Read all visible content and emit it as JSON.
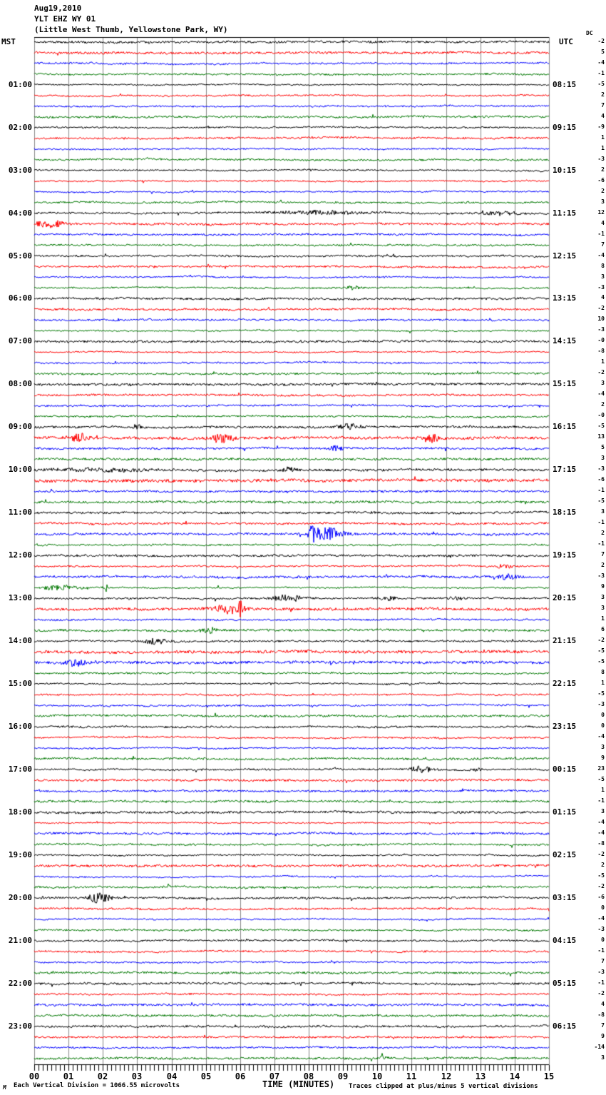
{
  "header": {
    "date": "Aug19,2010",
    "station": "YLT EHZ WY 01",
    "location": "(Little West Thumb, Yellowstone Park, WY)"
  },
  "axis_headers": {
    "left": "MST",
    "right": "UTC",
    "dc": "DC"
  },
  "x_axis": {
    "label": "TIME (MINUTES)",
    "tick_labels": [
      "00",
      "01",
      "02",
      "03",
      "04",
      "05",
      "06",
      "07",
      "08",
      "09",
      "10",
      "11",
      "12",
      "13",
      "14",
      "15"
    ]
  },
  "footer": {
    "scale_note": "Each Vertical Division = 1066.55 microvolts",
    "clip_note": "Traces clipped at plus/minus 5 vertical divisions",
    "watermark": "M"
  },
  "colors": {
    "traces": [
      "#000000",
      "#ff0000",
      "#0000ff",
      "#007700"
    ],
    "grid": "#888888",
    "border": "#000000",
    "background": "#ffffff"
  },
  "chart_data": {
    "type": "line",
    "kind": "helicorder-seismogram",
    "x_range_minutes": [
      0,
      15
    ],
    "minutes_per_row": 15,
    "row_count": 96,
    "rows": [
      {
        "mst": "",
        "utc": "",
        "dc": "-2"
      },
      {
        "mst": "",
        "utc": "",
        "dc": "5"
      },
      {
        "mst": "",
        "utc": "",
        "dc": "-4"
      },
      {
        "mst": "",
        "utc": "",
        "dc": "-1"
      },
      {
        "mst": "01:00",
        "utc": "08:15",
        "dc": "-5"
      },
      {
        "mst": "",
        "utc": "",
        "dc": "2"
      },
      {
        "mst": "",
        "utc": "",
        "dc": "7"
      },
      {
        "mst": "",
        "utc": "",
        "dc": "4"
      },
      {
        "mst": "02:00",
        "utc": "09:15",
        "dc": "-9"
      },
      {
        "mst": "",
        "utc": "",
        "dc": "1"
      },
      {
        "mst": "",
        "utc": "",
        "dc": "1"
      },
      {
        "mst": "",
        "utc": "",
        "dc": "-3"
      },
      {
        "mst": "03:00",
        "utc": "10:15",
        "dc": "2"
      },
      {
        "mst": "",
        "utc": "",
        "dc": "-6"
      },
      {
        "mst": "",
        "utc": "",
        "dc": "2"
      },
      {
        "mst": "",
        "utc": "",
        "dc": "3"
      },
      {
        "mst": "04:00",
        "utc": "11:15",
        "dc": "12"
      },
      {
        "mst": "",
        "utc": "",
        "dc": "4"
      },
      {
        "mst": "",
        "utc": "",
        "dc": "-1"
      },
      {
        "mst": "",
        "utc": "",
        "dc": "7"
      },
      {
        "mst": "05:00",
        "utc": "12:15",
        "dc": "-4"
      },
      {
        "mst": "",
        "utc": "",
        "dc": "8"
      },
      {
        "mst": "",
        "utc": "",
        "dc": "3"
      },
      {
        "mst": "",
        "utc": "",
        "dc": "-3"
      },
      {
        "mst": "06:00",
        "utc": "13:15",
        "dc": "4"
      },
      {
        "mst": "",
        "utc": "",
        "dc": "-2"
      },
      {
        "mst": "",
        "utc": "",
        "dc": "10"
      },
      {
        "mst": "",
        "utc": "",
        "dc": "-3"
      },
      {
        "mst": "07:00",
        "utc": "14:15",
        "dc": "-0"
      },
      {
        "mst": "",
        "utc": "",
        "dc": "-8"
      },
      {
        "mst": "",
        "utc": "",
        "dc": "1"
      },
      {
        "mst": "",
        "utc": "",
        "dc": "-2"
      },
      {
        "mst": "08:00",
        "utc": "15:15",
        "dc": "3"
      },
      {
        "mst": "",
        "utc": "",
        "dc": "-4"
      },
      {
        "mst": "",
        "utc": "",
        "dc": "2"
      },
      {
        "mst": "",
        "utc": "",
        "dc": "-0"
      },
      {
        "mst": "09:00",
        "utc": "16:15",
        "dc": "-5"
      },
      {
        "mst": "",
        "utc": "",
        "dc": "13"
      },
      {
        "mst": "",
        "utc": "",
        "dc": "5"
      },
      {
        "mst": "",
        "utc": "",
        "dc": "3"
      },
      {
        "mst": "10:00",
        "utc": "17:15",
        "dc": "-3"
      },
      {
        "mst": "",
        "utc": "",
        "dc": "-6"
      },
      {
        "mst": "",
        "utc": "",
        "dc": "-1"
      },
      {
        "mst": "",
        "utc": "",
        "dc": "-5"
      },
      {
        "mst": "11:00",
        "utc": "18:15",
        "dc": "3"
      },
      {
        "mst": "",
        "utc": "",
        "dc": "-1"
      },
      {
        "mst": "",
        "utc": "",
        "dc": "2"
      },
      {
        "mst": "",
        "utc": "",
        "dc": "-1"
      },
      {
        "mst": "12:00",
        "utc": "19:15",
        "dc": "7"
      },
      {
        "mst": "",
        "utc": "",
        "dc": "2"
      },
      {
        "mst": "",
        "utc": "",
        "dc": "-3"
      },
      {
        "mst": "",
        "utc": "",
        "dc": "9"
      },
      {
        "mst": "13:00",
        "utc": "20:15",
        "dc": "3"
      },
      {
        "mst": "",
        "utc": "",
        "dc": "3"
      },
      {
        "mst": "",
        "utc": "",
        "dc": "1"
      },
      {
        "mst": "",
        "utc": "",
        "dc": "6"
      },
      {
        "mst": "14:00",
        "utc": "21:15",
        "dc": "-2"
      },
      {
        "mst": "",
        "utc": "",
        "dc": "-5"
      },
      {
        "mst": "",
        "utc": "",
        "dc": "-5"
      },
      {
        "mst": "",
        "utc": "",
        "dc": "8"
      },
      {
        "mst": "15:00",
        "utc": "22:15",
        "dc": "1"
      },
      {
        "mst": "",
        "utc": "",
        "dc": "-5"
      },
      {
        "mst": "",
        "utc": "",
        "dc": "-3"
      },
      {
        "mst": "",
        "utc": "",
        "dc": "0"
      },
      {
        "mst": "16:00",
        "utc": "23:15",
        "dc": "0"
      },
      {
        "mst": "",
        "utc": "",
        "dc": "-4"
      },
      {
        "mst": "",
        "utc": "",
        "dc": "3"
      },
      {
        "mst": "",
        "utc": "",
        "dc": "9"
      },
      {
        "mst": "17:00",
        "utc": "00:15",
        "dc": "23"
      },
      {
        "mst": "",
        "utc": "",
        "dc": "-5"
      },
      {
        "mst": "",
        "utc": "",
        "dc": "1"
      },
      {
        "mst": "",
        "utc": "",
        "dc": "-1"
      },
      {
        "mst": "18:00",
        "utc": "01:15",
        "dc": "3"
      },
      {
        "mst": "",
        "utc": "",
        "dc": "-4"
      },
      {
        "mst": "",
        "utc": "",
        "dc": "-4"
      },
      {
        "mst": "",
        "utc": "",
        "dc": "-8"
      },
      {
        "mst": "19:00",
        "utc": "02:15",
        "dc": "-2"
      },
      {
        "mst": "",
        "utc": "",
        "dc": "2"
      },
      {
        "mst": "",
        "utc": "",
        "dc": "-5"
      },
      {
        "mst": "",
        "utc": "",
        "dc": "-2"
      },
      {
        "mst": "20:00",
        "utc": "03:15",
        "dc": "-6"
      },
      {
        "mst": "",
        "utc": "",
        "dc": "0"
      },
      {
        "mst": "",
        "utc": "",
        "dc": "-4"
      },
      {
        "mst": "",
        "utc": "",
        "dc": "-3"
      },
      {
        "mst": "21:00",
        "utc": "04:15",
        "dc": "0"
      },
      {
        "mst": "",
        "utc": "",
        "dc": "-1"
      },
      {
        "mst": "",
        "utc": "",
        "dc": "7"
      },
      {
        "mst": "",
        "utc": "",
        "dc": "-3"
      },
      {
        "mst": "22:00",
        "utc": "05:15",
        "dc": "-1"
      },
      {
        "mst": "",
        "utc": "",
        "dc": "-2"
      },
      {
        "mst": "",
        "utc": "",
        "dc": "4"
      },
      {
        "mst": "",
        "utc": "",
        "dc": "-8"
      },
      {
        "mst": "23:00",
        "utc": "06:15",
        "dc": "7"
      },
      {
        "mst": "",
        "utc": "",
        "dc": "9"
      },
      {
        "mst": "",
        "utc": "",
        "dc": "-14"
      },
      {
        "mst": "",
        "utc": "",
        "dc": "3"
      }
    ],
    "noisy_rows": [
      37,
      40,
      41,
      42,
      43,
      53,
      57,
      58
    ],
    "events": [
      {
        "row": 16,
        "minute": 8.3,
        "width": 1.2,
        "amp": 1.6
      },
      {
        "row": 16,
        "minute": 13.6,
        "width": 0.5,
        "amp": 1.5
      },
      {
        "row": 17,
        "minute": 0.45,
        "width": 0.35,
        "amp": 4.0
      },
      {
        "row": 23,
        "minute": 9.3,
        "width": 0.25,
        "amp": 2.5
      },
      {
        "row": 36,
        "minute": 3.0,
        "width": 0.15,
        "amp": 2.2
      },
      {
        "row": 36,
        "minute": 9.2,
        "width": 0.3,
        "amp": 2.5
      },
      {
        "row": 37,
        "minute": 1.3,
        "width": 0.25,
        "amp": 3.0
      },
      {
        "row": 37,
        "minute": 5.5,
        "width": 0.3,
        "amp": 3.5
      },
      {
        "row": 37,
        "minute": 11.6,
        "width": 0.25,
        "amp": 2.5
      },
      {
        "row": 38,
        "minute": 8.8,
        "width": 0.2,
        "amp": 2.0
      },
      {
        "row": 40,
        "minute": 2.0,
        "width": 1.2,
        "amp": 1.2
      },
      {
        "row": 40,
        "minute": 7.4,
        "width": 0.2,
        "amp": 2.0
      },
      {
        "row": 46,
        "minute": 8.5,
        "width": 0.45,
        "amp": 6.0
      },
      {
        "row": 46,
        "minute": 8.1,
        "width": 0.08,
        "amp": 9.0
      },
      {
        "row": 49,
        "minute": 13.7,
        "width": 0.25,
        "amp": 2.5
      },
      {
        "row": 50,
        "minute": 13.8,
        "width": 0.25,
        "amp": 2.0
      },
      {
        "row": 51,
        "minute": 0.8,
        "width": 0.5,
        "amp": 3.0
      },
      {
        "row": 51,
        "minute": 2.1,
        "width": 0.07,
        "amp": 5.0
      },
      {
        "row": 52,
        "minute": 7.4,
        "width": 0.45,
        "amp": 3.5
      },
      {
        "row": 52,
        "minute": 10.3,
        "width": 0.25,
        "amp": 2.5
      },
      {
        "row": 52,
        "minute": 12.3,
        "width": 0.2,
        "amp": 2.0
      },
      {
        "row": 53,
        "minute": 5.7,
        "width": 0.4,
        "amp": 3.5
      },
      {
        "row": 53,
        "minute": 6.0,
        "width": 0.06,
        "amp": 5.0
      },
      {
        "row": 55,
        "minute": 5.1,
        "width": 0.25,
        "amp": 2.5
      },
      {
        "row": 56,
        "minute": 3.6,
        "width": 0.35,
        "amp": 3.0
      },
      {
        "row": 58,
        "minute": 1.2,
        "width": 0.25,
        "amp": 2.5
      },
      {
        "row": 68,
        "minute": 11.3,
        "width": 0.3,
        "amp": 3.5
      },
      {
        "row": 68,
        "minute": 12.9,
        "width": 0.15,
        "amp": 2.0
      },
      {
        "row": 80,
        "minute": 1.9,
        "width": 0.3,
        "amp": 5.0
      },
      {
        "row": 95,
        "minute": 10.15,
        "width": 0.08,
        "amp": 4.0
      }
    ]
  }
}
